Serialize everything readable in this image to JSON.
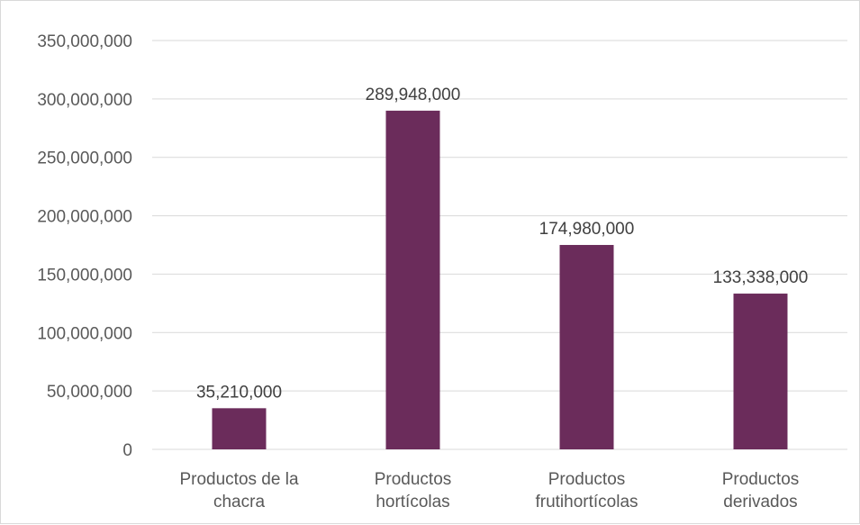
{
  "chart_data": {
    "type": "bar",
    "categories": [
      [
        "Productos de la",
        "chacra"
      ],
      [
        "Productos",
        "hortícolas"
      ],
      [
        "Productos",
        "frutihortícolas"
      ],
      [
        "Productos",
        "derivados"
      ]
    ],
    "values": [
      35210000,
      289948000,
      174980000,
      133338000
    ],
    "value_labels": [
      "35,210,000",
      "289,948,000",
      "174,980,000",
      "133,338,000"
    ],
    "ylim": [
      0,
      350000000
    ],
    "y_ticks": [
      0,
      50000000,
      100000000,
      150000000,
      200000000,
      250000000,
      300000000,
      350000000
    ],
    "y_tick_labels": [
      "0",
      "50,000,000",
      "100,000,000",
      "150,000,000",
      "200,000,000",
      "250,000,000",
      "300,000,000",
      "350,000,000"
    ],
    "grid": true,
    "legend": "none",
    "bar_color": "#6b2c5b",
    "grid_color": "#d9d9d9"
  }
}
